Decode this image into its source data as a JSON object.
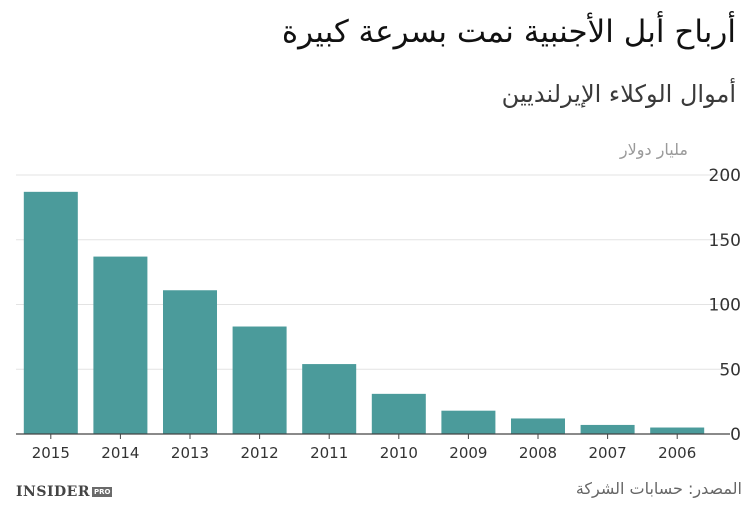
{
  "title": "أرباح أبل الأجنبية نمت بسرعة كبيرة",
  "subtitle": "أموال الوكلاء الإيرلنديين",
  "source": "المصدر: حسابات الشركة",
  "logo": {
    "text": "INSIDER",
    "badge": "PRO"
  },
  "colors": {
    "bar": "#4b9b9b",
    "grid": "#e3e3e3",
    "axis": "#444444",
    "tick_text": "#333333"
  },
  "chart_data": {
    "type": "bar",
    "categories": [
      "2015",
      "2014",
      "2013",
      "2012",
      "2011",
      "2010",
      "2009",
      "2008",
      "2007",
      "2006"
    ],
    "values": [
      187,
      137,
      111,
      83,
      54,
      31,
      18,
      12,
      7,
      5
    ],
    "title": "أرباح أبل الأجنبية نمت بسرعة كبيرة",
    "subtitle": "أموال الوكلاء الإيرلنديين",
    "ylabel": "مليار دولار",
    "ylim": [
      0,
      200
    ],
    "yticks": [
      0,
      50,
      100,
      150,
      200
    ],
    "grid": true,
    "y_axis_side": "right"
  }
}
